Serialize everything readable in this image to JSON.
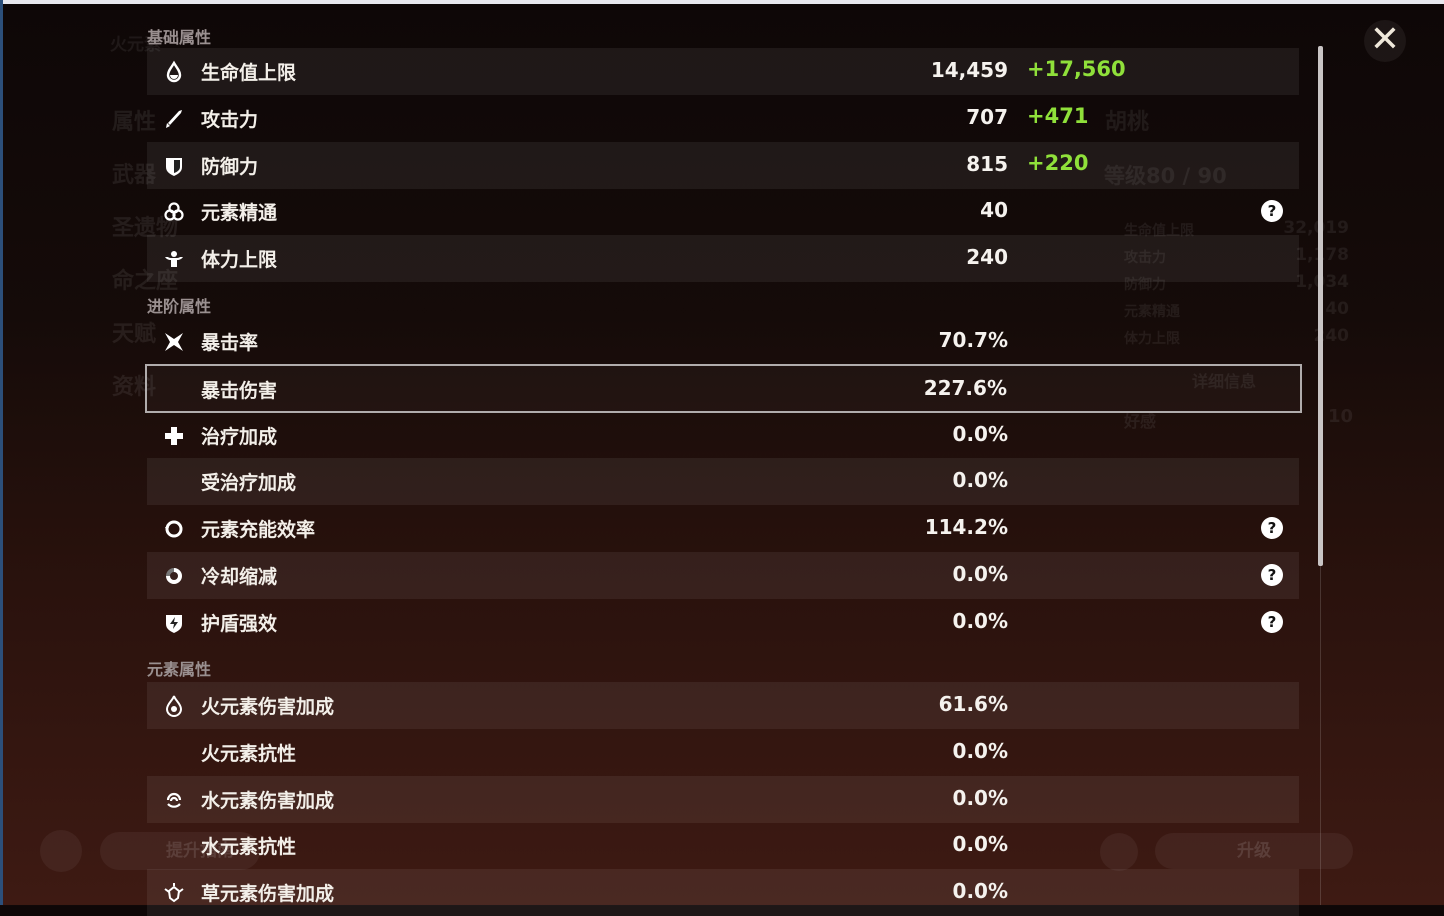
{
  "background": {
    "element_title": "火元素",
    "nav": [
      "属性",
      "武器",
      "圣遗物",
      "命之座",
      "天赋",
      "资料"
    ],
    "character_name": "胡桃",
    "level": "等级80 / 90",
    "side_stats": [
      {
        "label": "生命值上限",
        "value": "32,019"
      },
      {
        "label": "攻击力",
        "value": "1,178"
      },
      {
        "label": "防御力",
        "value": "1,034"
      },
      {
        "label": "元素精通",
        "value": "40"
      },
      {
        "label": "体力上限",
        "value": "240"
      }
    ],
    "details_button": "详细信息",
    "friendship_label": "好感",
    "friendship_value": "10",
    "guide_button": "提升指南",
    "upgrade_button": "升级"
  },
  "close_label": "✕",
  "sections": [
    {
      "title": "基础属性",
      "rows": [
        {
          "icon": "hp-drop-icon",
          "label": "生命值上限",
          "value": "14,459",
          "bonus": "+17,560"
        },
        {
          "icon": "sword-icon",
          "label": "攻击力",
          "value": "707",
          "bonus": "+471"
        },
        {
          "icon": "shield-icon",
          "label": "防御力",
          "value": "815",
          "bonus": "+220"
        },
        {
          "icon": "elemental-mastery-icon",
          "label": "元素精通",
          "value": "40",
          "help": "?"
        },
        {
          "icon": "stamina-icon",
          "label": "体力上限",
          "value": "240"
        }
      ]
    },
    {
      "title": "进阶属性",
      "rows": [
        {
          "icon": "crit-rate-icon",
          "label": "暴击率",
          "value": "70.7%"
        },
        {
          "icon": "",
          "label": "暴击伤害",
          "value": "227.6%",
          "selected": true
        },
        {
          "icon": "healing-cross-icon",
          "label": "治疗加成",
          "value": "0.0%"
        },
        {
          "icon": "",
          "label": "受治疗加成",
          "value": "0.0%"
        },
        {
          "icon": "energy-recharge-icon",
          "label": "元素充能效率",
          "value": "114.2%",
          "help": "?"
        },
        {
          "icon": "cooldown-icon",
          "label": "冷却缩减",
          "value": "0.0%",
          "help": "?"
        },
        {
          "icon": "shield-strength-icon",
          "label": "护盾强效",
          "value": "0.0%",
          "help": "?"
        }
      ]
    },
    {
      "title": "元素属性",
      "rows": [
        {
          "icon": "pyro-icon",
          "label": "火元素伤害加成",
          "value": "61.6%"
        },
        {
          "icon": "",
          "label": "火元素抗性",
          "value": "0.0%"
        },
        {
          "icon": "hydro-icon",
          "label": "水元素伤害加成",
          "value": "0.0%"
        },
        {
          "icon": "",
          "label": "水元素抗性",
          "value": "0.0%"
        },
        {
          "icon": "dendro-icon",
          "label": "草元素伤害加成",
          "value": "0.0%"
        }
      ]
    }
  ],
  "colors": {
    "bonus": "#8fe03a",
    "highlight_border": "#b0acac"
  }
}
